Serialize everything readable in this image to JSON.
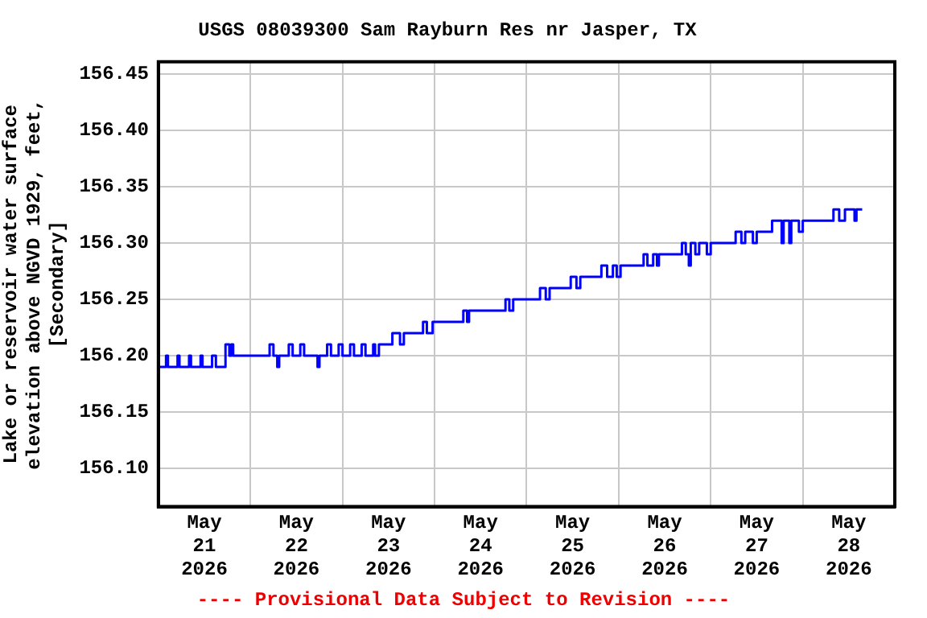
{
  "chart_data": {
    "type": "step",
    "title": "USGS 08039300 Sam Rayburn Res nr Jasper, TX",
    "ylabel": "Lake or reservoir water surface elevation above NGVD 1929, feet, [Secondary]",
    "annotations": [
      "---- Provisional Data Subject to Revision ----"
    ],
    "color": "#0000ff",
    "x": [
      "2026-05-21T00:00",
      "2026-05-21T02:00",
      "2026-05-21T02:30",
      "2026-05-21T05:00",
      "2026-05-21T05:30",
      "2026-05-21T08:00",
      "2026-05-21T08:30",
      "2026-05-21T11:00",
      "2026-05-21T11:30",
      "2026-05-21T14:00",
      "2026-05-21T15:00",
      "2026-05-21T17:30",
      "2026-05-21T18:30",
      "2026-05-21T19:00",
      "2026-05-21T19:30",
      "2026-05-22T05:00",
      "2026-05-22T06:00",
      "2026-05-22T07:00",
      "2026-05-22T07:30",
      "2026-05-22T10:00",
      "2026-05-22T11:00",
      "2026-05-22T13:00",
      "2026-05-22T14:00",
      "2026-05-22T17:30",
      "2026-05-22T18:00",
      "2026-05-22T20:00",
      "2026-05-22T21:00",
      "2026-05-22T23:00",
      "2026-05-23T00:00",
      "2026-05-23T02:00",
      "2026-05-23T03:00",
      "2026-05-23T05:00",
      "2026-05-23T06:00",
      "2026-05-23T08:00",
      "2026-05-23T08:30",
      "2026-05-23T09:30",
      "2026-05-23T13:00",
      "2026-05-23T15:00",
      "2026-05-23T16:00",
      "2026-05-23T21:00",
      "2026-05-23T22:00",
      "2026-05-23T23:30",
      "2026-05-24T07:30",
      "2026-05-24T08:30",
      "2026-05-24T09:00",
      "2026-05-24T18:30",
      "2026-05-24T19:30",
      "2026-05-24T20:30",
      "2026-05-25T03:30",
      "2026-05-25T05:00",
      "2026-05-25T06:00",
      "2026-05-25T11:30",
      "2026-05-25T13:00",
      "2026-05-25T14:00",
      "2026-05-25T19:30",
      "2026-05-25T21:00",
      "2026-05-25T22:30",
      "2026-05-25T23:30",
      "2026-05-26T00:30",
      "2026-05-26T06:30",
      "2026-05-26T07:30",
      "2026-05-26T09:00",
      "2026-05-26T10:00",
      "2026-05-26T10:30",
      "2026-05-26T16:30",
      "2026-05-26T17:30",
      "2026-05-26T18:18",
      "2026-05-26T18:48",
      "2026-05-26T20:00",
      "2026-05-26T21:00",
      "2026-05-26T23:00",
      "2026-05-27T00:00",
      "2026-05-27T06:30",
      "2026-05-27T08:00",
      "2026-05-27T09:00",
      "2026-05-27T11:00",
      "2026-05-27T12:00",
      "2026-05-27T16:00",
      "2026-05-27T18:30",
      "2026-05-27T19:00",
      "2026-05-27T20:30",
      "2026-05-27T21:00",
      "2026-05-27T23:00",
      "2026-05-28T00:00",
      "2026-05-28T02:00",
      "2026-05-28T08:00",
      "2026-05-28T09:30",
      "2026-05-28T11:00",
      "2026-05-28T13:30",
      "2026-05-28T14:00",
      "2026-05-28T15:30"
    ],
    "values": [
      156.19,
      156.2,
      156.19,
      156.2,
      156.19,
      156.2,
      156.19,
      156.2,
      156.19,
      156.2,
      156.19,
      156.21,
      156.2,
      156.21,
      156.2,
      156.21,
      156.2,
      156.19,
      156.2,
      156.21,
      156.2,
      156.21,
      156.2,
      156.19,
      156.2,
      156.21,
      156.2,
      156.21,
      156.2,
      156.21,
      156.2,
      156.21,
      156.2,
      156.21,
      156.2,
      156.21,
      156.22,
      156.21,
      156.22,
      156.23,
      156.22,
      156.23,
      156.24,
      156.23,
      156.24,
      156.25,
      156.24,
      156.25,
      156.26,
      156.25,
      156.26,
      156.27,
      156.26,
      156.27,
      156.28,
      156.27,
      156.28,
      156.27,
      156.28,
      156.29,
      156.28,
      156.29,
      156.28,
      156.29,
      156.3,
      156.29,
      156.28,
      156.3,
      156.29,
      156.3,
      156.29,
      156.3,
      156.31,
      156.3,
      156.31,
      156.3,
      156.31,
      156.32,
      156.3,
      156.32,
      156.3,
      156.32,
      156.31,
      156.32,
      156.32,
      156.33,
      156.32,
      156.33,
      156.32,
      156.33,
      156.33
    ],
    "xlim": [
      "2026-05-21T00:00",
      "2026-05-29T00:00"
    ],
    "xticks": [
      {
        "value": "2026-05-21T12:00",
        "label": "May 21 2026"
      },
      {
        "value": "2026-05-22T00:00",
        "label": null
      },
      {
        "value": "2026-05-22T12:00",
        "label": "May 22 2026"
      },
      {
        "value": "2026-05-23T00:00",
        "label": null
      },
      {
        "value": "2026-05-23T12:00",
        "label": "May 23 2026"
      },
      {
        "value": "2026-05-24T00:00",
        "label": null
      },
      {
        "value": "2026-05-24T12:00",
        "label": "May 24 2026"
      },
      {
        "value": "2026-05-25T00:00",
        "label": null
      },
      {
        "value": "2026-05-25T12:00",
        "label": "May 25 2026"
      },
      {
        "value": "2026-05-26T00:00",
        "label": null
      },
      {
        "value": "2026-05-26T12:00",
        "label": "May 26 2026"
      },
      {
        "value": "2026-05-27T00:00",
        "label": null
      },
      {
        "value": "2026-05-27T12:00",
        "label": "May 27 2026"
      },
      {
        "value": "2026-05-28T00:00",
        "label": null
      },
      {
        "value": "2026-05-28T12:00",
        "label": "May 28 2026"
      }
    ],
    "ylim": [
      156.066,
      156.461
    ],
    "yticks": [
      {
        "value": 156.1,
        "label": "156.10"
      },
      {
        "value": 156.15,
        "label": "156.15"
      },
      {
        "value": 156.2,
        "label": "156.20"
      },
      {
        "value": 156.25,
        "label": "156.25"
      },
      {
        "value": 156.3,
        "label": "156.30"
      },
      {
        "value": 156.35,
        "label": "156.35"
      },
      {
        "value": 156.4,
        "label": "156.40"
      },
      {
        "value": 156.45,
        "label": "156.45"
      }
    ],
    "grid": true
  }
}
